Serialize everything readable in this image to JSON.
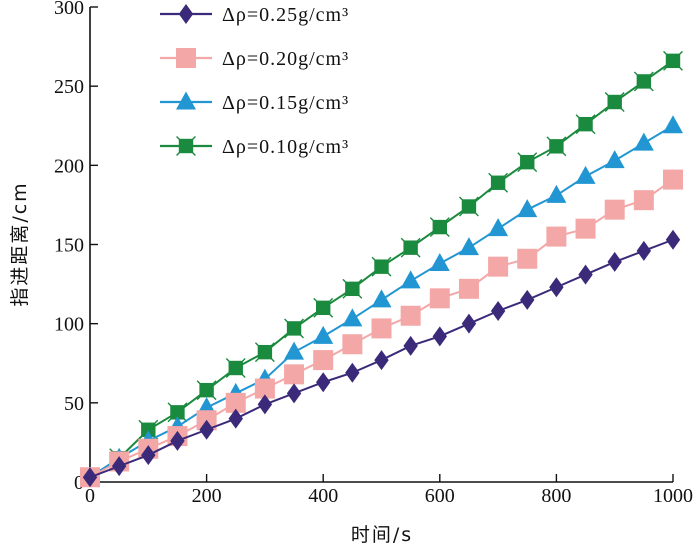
{
  "chart_data": {
    "type": "line",
    "title": "",
    "xlabel": "时间/s",
    "ylabel": "指进距离/cm",
    "xlim": [
      0,
      1000
    ],
    "ylim": [
      0,
      300
    ],
    "xticks": [
      0,
      200,
      400,
      600,
      800,
      1000
    ],
    "yticks": [
      0,
      50,
      100,
      150,
      200,
      250,
      300
    ],
    "grid": false,
    "legend_position": "top-left",
    "x": [
      0,
      50,
      100,
      150,
      200,
      250,
      300,
      350,
      400,
      450,
      500,
      550,
      600,
      650,
      700,
      750,
      800,
      850,
      900,
      950,
      1000
    ],
    "series": [
      {
        "name": "Δρ=0.25g/cm³",
        "marker": "diamond",
        "color": "#3b2a7a",
        "values": [
          3,
          10,
          17,
          26,
          33,
          40,
          49,
          56,
          63,
          69,
          77,
          86,
          92,
          100,
          108,
          115,
          123,
          131,
          139,
          146,
          153
        ]
      },
      {
        "name": "Δρ=0.20g/cm³",
        "marker": "square",
        "color": "#f4a7a7",
        "values": [
          3,
          13,
          21,
          29,
          39,
          50,
          59,
          68,
          77,
          87,
          97,
          105,
          116,
          122,
          136,
          141,
          155,
          160,
          172,
          178,
          191
        ]
      },
      {
        "name": "Δρ=0.15g/cm³",
        "marker": "triangle",
        "color": "#2196d3",
        "values": [
          3,
          15,
          26,
          35,
          47,
          56,
          65,
          82,
          92,
          103,
          115,
          127,
          138,
          148,
          160,
          172,
          181,
          193,
          203,
          214,
          225
        ]
      },
      {
        "name": "Δρ=0.10g/cm³",
        "marker": "square-cross",
        "color": "#1a8a3e",
        "values": [
          3,
          15,
          33,
          44,
          58,
          72,
          82,
          97,
          110,
          122,
          136,
          148,
          161,
          174,
          189,
          202,
          212,
          226,
          240,
          253,
          266
        ]
      }
    ]
  }
}
